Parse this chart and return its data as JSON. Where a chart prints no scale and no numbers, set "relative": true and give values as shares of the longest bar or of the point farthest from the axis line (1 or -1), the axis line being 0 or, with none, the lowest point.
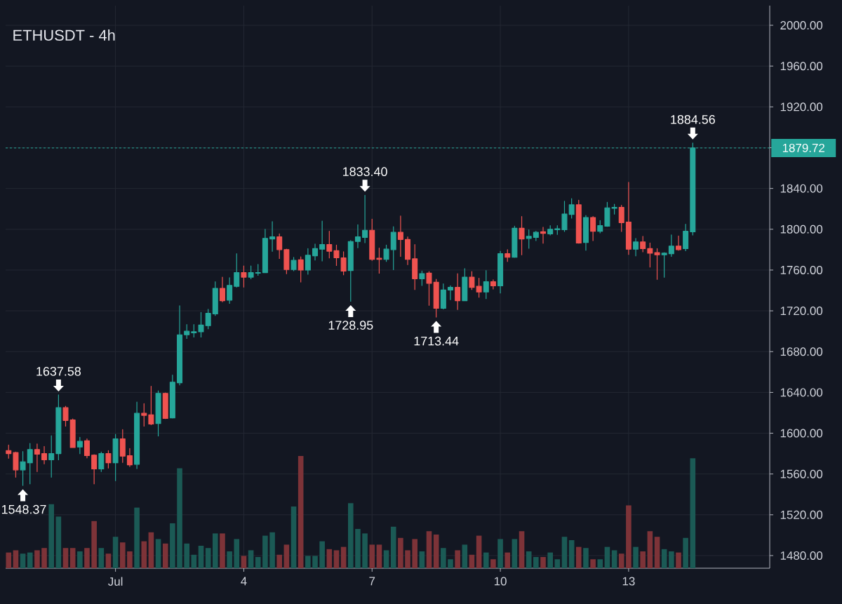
{
  "chart_data": [
    {
      "type": "candlestick",
      "title": "ETHUSDT - 4h",
      "x": [
        -1.5,
        -1.333,
        -1.167,
        -1,
        -0.833,
        -0.667,
        -0.5,
        -0.333,
        -0.167,
        0,
        0.167,
        0.333,
        0.5,
        0.667,
        0.833,
        1,
        1.167,
        1.333,
        1.5,
        1.667,
        1.833,
        2,
        2.167,
        2.333,
        2.5,
        2.667,
        2.833,
        3,
        3.167,
        3.333,
        3.5,
        3.667,
        3.833,
        4,
        4.167,
        4.333,
        4.5,
        4.667,
        4.833,
        5,
        5.167,
        5.333,
        5.5,
        5.667,
        5.833,
        6,
        6.167,
        6.333,
        6.5,
        6.667,
        6.833,
        7,
        7.167,
        7.333,
        7.5,
        7.667,
        7.833,
        8,
        8.167,
        8.333,
        8.5,
        8.667,
        8.833,
        9,
        9.167,
        9.333,
        9.5,
        9.667,
        9.833,
        10,
        10.167,
        10.333,
        10.5,
        10.667,
        10.833,
        11,
        11.167,
        11.333,
        11.5,
        11.667,
        11.833,
        12,
        12.167,
        12.333,
        12.5,
        12.667,
        12.833,
        13,
        13.167,
        13.333,
        13.5,
        13.667,
        13.833,
        14,
        14.167,
        14.333,
        14.5
      ],
      "ohlc": [
        [
          1583,
          1588.5,
          1575,
          1580
        ],
        [
          1581,
          1581.5,
          1556.5,
          1564
        ],
        [
          1564,
          1582,
          1548.37,
          1572
        ],
        [
          1571,
          1590,
          1550,
          1584
        ],
        [
          1584,
          1589.5,
          1562,
          1579.5
        ],
        [
          1580,
          1587,
          1569.5,
          1574
        ],
        [
          1574,
          1597.5,
          1556.5,
          1580
        ],
        [
          1580,
          1637.58,
          1573.5,
          1625
        ],
        [
          1625,
          1626.5,
          1606.5,
          1612.5
        ],
        [
          1613,
          1614,
          1585.5,
          1586
        ],
        [
          1586.5,
          1596,
          1579.5,
          1592
        ],
        [
          1592.5,
          1594.5,
          1575.5,
          1578
        ],
        [
          1578.5,
          1579,
          1550,
          1565
        ],
        [
          1565,
          1581.5,
          1562,
          1580
        ],
        [
          1580,
          1583,
          1565.5,
          1571
        ],
        [
          1571,
          1599,
          1553,
          1594.5
        ],
        [
          1594.5,
          1603.5,
          1571,
          1577.5
        ],
        [
          1578,
          1585,
          1567,
          1569
        ],
        [
          1569.5,
          1630.5,
          1565,
          1619.5
        ],
        [
          1619.5,
          1629,
          1606.5,
          1617.5
        ],
        [
          1618,
          1646,
          1608,
          1609
        ],
        [
          1609.5,
          1641.5,
          1597,
          1639
        ],
        [
          1639,
          1639.5,
          1614,
          1614.5
        ],
        [
          1615,
          1657,
          1614.5,
          1650
        ],
        [
          1649.5,
          1725,
          1647,
          1696.5
        ],
        [
          1696.5,
          1706.5,
          1692.5,
          1700
        ],
        [
          1698.5,
          1706.5,
          1694,
          1699.5
        ],
        [
          1699.5,
          1718.5,
          1694,
          1706
        ],
        [
          1705.5,
          1721.5,
          1702,
          1717.5
        ],
        [
          1717,
          1748.5,
          1715,
          1742
        ],
        [
          1742,
          1753,
          1728.5,
          1730
        ],
        [
          1730.5,
          1752.5,
          1727,
          1745
        ],
        [
          1744,
          1776,
          1743,
          1757.5
        ],
        [
          1757.5,
          1764,
          1743,
          1753
        ],
        [
          1753,
          1764,
          1751,
          1757.5
        ],
        [
          1757,
          1765.5,
          1754.5,
          1757.5
        ],
        [
          1757.5,
          1800,
          1757,
          1791
        ],
        [
          1790.5,
          1807.5,
          1778,
          1792.5
        ],
        [
          1792.5,
          1795.5,
          1771,
          1780
        ],
        [
          1780,
          1780.5,
          1756,
          1760.5
        ],
        [
          1760.5,
          1772.5,
          1759,
          1769.5
        ],
        [
          1770,
          1773,
          1748,
          1760
        ],
        [
          1760,
          1781,
          1755.5,
          1774.5
        ],
        [
          1774,
          1785.5,
          1769.5,
          1781
        ],
        [
          1780.5,
          1808,
          1768.5,
          1785
        ],
        [
          1785,
          1798,
          1771.5,
          1778.5
        ],
        [
          1779,
          1784.5,
          1764,
          1772
        ],
        [
          1772,
          1778,
          1755,
          1759
        ],
        [
          1759.5,
          1789,
          1728.95,
          1788
        ],
        [
          1788,
          1804.5,
          1781.5,
          1792.5
        ],
        [
          1792,
          1833.4,
          1786.5,
          1799
        ],
        [
          1799,
          1810,
          1769,
          1770.5
        ],
        [
          1771.5,
          1781.5,
          1756.5,
          1770.5
        ],
        [
          1770.5,
          1784.5,
          1768,
          1780.5
        ],
        [
          1780,
          1802.5,
          1760,
          1797
        ],
        [
          1797,
          1813,
          1773,
          1790
        ],
        [
          1790,
          1792.5,
          1765,
          1770.5
        ],
        [
          1771,
          1785,
          1740.5,
          1751.5
        ],
        [
          1751.5,
          1759,
          1744.5,
          1756.5
        ],
        [
          1757,
          1758.5,
          1725,
          1747
        ],
        [
          1748,
          1751,
          1713.44,
          1722.5
        ],
        [
          1722.5,
          1746.5,
          1721.5,
          1740.5
        ],
        [
          1740.5,
          1744.5,
          1730.5,
          1743
        ],
        [
          1743,
          1756.5,
          1721,
          1730
        ],
        [
          1730,
          1761.5,
          1729.5,
          1753
        ],
        [
          1753,
          1758.5,
          1740.5,
          1743
        ],
        [
          1744,
          1752,
          1733,
          1738.5
        ],
        [
          1738.5,
          1759.5,
          1731.5,
          1748.5
        ],
        [
          1748.5,
          1750.5,
          1741,
          1744.5
        ],
        [
          1744.5,
          1778.5,
          1737,
          1776
        ],
        [
          1776,
          1780,
          1768,
          1772.5
        ],
        [
          1772.5,
          1803,
          1772,
          1801
        ],
        [
          1801,
          1812.5,
          1774.5,
          1790.5
        ],
        [
          1791,
          1799.5,
          1781,
          1793
        ],
        [
          1792,
          1798,
          1788.5,
          1797
        ],
        [
          1797.5,
          1802,
          1786,
          1796
        ],
        [
          1795.5,
          1803.5,
          1794,
          1800
        ],
        [
          1799.5,
          1803.5,
          1794.5,
          1800.5
        ],
        [
          1799.5,
          1827.5,
          1797.5,
          1815
        ],
        [
          1814.5,
          1830,
          1810.5,
          1824
        ],
        [
          1824,
          1828.5,
          1786,
          1786.5
        ],
        [
          1787,
          1813.5,
          1779,
          1811.5
        ],
        [
          1811.5,
          1812.5,
          1788.5,
          1798
        ],
        [
          1798,
          1808.5,
          1796,
          1803.5
        ],
        [
          1803,
          1826.5,
          1802.5,
          1821
        ],
        [
          1820.5,
          1824.5,
          1814.5,
          1821.5
        ],
        [
          1821.5,
          1823.5,
          1797.5,
          1806.5
        ],
        [
          1807,
          1846,
          1775,
          1780.5
        ],
        [
          1780.5,
          1791,
          1773.5,
          1787.5
        ],
        [
          1787.5,
          1793,
          1777.5,
          1781
        ],
        [
          1781,
          1786.5,
          1762.5,
          1776.5
        ],
        [
          1777,
          1781,
          1750.5,
          1775
        ],
        [
          1775,
          1777,
          1752.5,
          1776.5
        ],
        [
          1776,
          1794.5,
          1773,
          1783.5
        ],
        [
          1783.5,
          1793.5,
          1779,
          1780
        ],
        [
          1781,
          1805,
          1778.5,
          1798
        ],
        [
          1797.5,
          1884.56,
          1794,
          1879.72
        ]
      ],
      "colors": [
        "#ef5350",
        "#ef5350",
        "#26a69a",
        "#26a69a",
        "#ef5350",
        "#ef5350",
        "#26a69a",
        "#26a69a",
        "#ef5350",
        "#ef5350",
        "#26a69a",
        "#ef5350",
        "#ef5350",
        "#26a69a",
        "#ef5350",
        "#26a69a",
        "#ef5350",
        "#ef5350",
        "#26a69a",
        "#ef5350",
        "#ef5350",
        "#26a69a",
        "#ef5350",
        "#26a69a",
        "#26a69a",
        "#26a69a",
        "#26a69a",
        "#26a69a",
        "#26a69a",
        "#26a69a",
        "#ef5350",
        "#26a69a",
        "#26a69a",
        "#ef5350",
        "#26a69a",
        "#26a69a",
        "#26a69a",
        "#26a69a",
        "#ef5350",
        "#ef5350",
        "#26a69a",
        "#ef5350",
        "#26a69a",
        "#26a69a",
        "#26a69a",
        "#ef5350",
        "#ef5350",
        "#ef5350",
        "#26a69a",
        "#26a69a",
        "#26a69a",
        "#ef5350",
        "#ef5350",
        "#26a69a",
        "#26a69a",
        "#ef5350",
        "#ef5350",
        "#ef5350",
        "#26a69a",
        "#ef5350",
        "#ef5350",
        "#26a69a",
        "#26a69a",
        "#ef5350",
        "#26a69a",
        "#ef5350",
        "#ef5350",
        "#26a69a",
        "#ef5350",
        "#26a69a",
        "#ef5350",
        "#26a69a",
        "#ef5350",
        "#26a69a",
        "#26a69a",
        "#ef5350",
        "#26a69a",
        "#26a69a",
        "#26a69a",
        "#26a69a",
        "#ef5350",
        "#26a69a",
        "#ef5350",
        "#26a69a",
        "#26a69a",
        "#26a69a",
        "#ef5350",
        "#ef5350",
        "#26a69a",
        "#ef5350",
        "#ef5350",
        "#ef5350",
        "#26a69a",
        "#26a69a",
        "#ef5350",
        "#26a69a",
        "#26a69a"
      ],
      "xlim": [
        -1.57,
        16.3
      ],
      "ylim": [
        1467.6,
        2019.3
      ],
      "xticks": [
        {
          "value": 1,
          "label": "Jul"
        },
        4,
        7,
        10,
        13
      ],
      "yticks": [
        {
          "value": 1480,
          "label": "1480.00"
        },
        {
          "value": 1520,
          "label": "1520.00"
        },
        {
          "value": 1560,
          "label": "1560.00"
        },
        {
          "value": 1600,
          "label": "1600.00"
        },
        {
          "value": 1640,
          "label": "1640.00"
        },
        {
          "value": 1680,
          "label": "1680.00"
        },
        {
          "value": 1720,
          "label": "1720.00"
        },
        {
          "value": 1760,
          "label": "1760.00"
        },
        {
          "value": 1800,
          "label": "1800.00"
        },
        {
          "value": 1840,
          "label": "1840.00"
        },
        {
          "value": 1880,
          "label": null
        },
        {
          "value": 1920,
          "label": "1920.00"
        },
        {
          "value": 1960,
          "label": "1960.00"
        },
        {
          "value": 2000,
          "label": "2000.00"
        }
      ],
      "grid": true,
      "ref_lines": [
        {
          "axis": "y",
          "value": 1879.72,
          "label": "1879.72",
          "color": "#26a69a",
          "line_style": "dashed"
        }
      ],
      "annotations": [
        {
          "text": "1548.37",
          "x": -1.167,
          "y": 1548.37
        },
        {
          "text": "1637.58",
          "x": -0.333,
          "y": 1637.58
        },
        {
          "text": "1728.95",
          "x": 6.5,
          "y": 1728.95
        },
        {
          "text": "1833.40",
          "x": 6.833,
          "y": 1833.4
        },
        {
          "text": "1713.44",
          "x": 8.5,
          "y": 1713.44
        },
        {
          "text": "1884.56",
          "x": 14.5,
          "y": 1884.56
        }
      ]
    },
    {
      "type": "bar",
      "relative": true,
      "xlim": [
        -1.57,
        16.3
      ],
      "x": [
        -1.5,
        -1.333,
        -1.167,
        -1,
        -0.833,
        -0.667,
        -0.5,
        -0.333,
        -0.167,
        0,
        0.167,
        0.333,
        0.5,
        0.667,
        0.833,
        1,
        1.167,
        1.333,
        1.5,
        1.667,
        1.833,
        2,
        2.167,
        2.333,
        2.5,
        2.667,
        2.833,
        3,
        3.167,
        3.333,
        3.5,
        3.667,
        3.833,
        4,
        4.167,
        4.333,
        4.5,
        4.667,
        4.833,
        5,
        5.167,
        5.333,
        5.5,
        5.667,
        5.833,
        6,
        6.167,
        6.333,
        6.5,
        6.667,
        6.833,
        7,
        7.167,
        7.333,
        7.5,
        7.667,
        7.833,
        8,
        8.167,
        8.333,
        8.5,
        8.667,
        8.833,
        9,
        9.167,
        9.333,
        9.5,
        9.667,
        9.833,
        10,
        10.167,
        10.333,
        10.5,
        10.667,
        10.833,
        11,
        11.167,
        11.333,
        11.5,
        11.667,
        11.833,
        12,
        12.167,
        12.333,
        12.5,
        12.667,
        12.833,
        13,
        13.167,
        13.333,
        13.5,
        13.667,
        13.833,
        14,
        14.167,
        14.333,
        14.5
      ],
      "values": [
        0.14,
        0.16,
        0.13,
        0.14,
        0.16,
        0.18,
        0.57,
        0.46,
        0.18,
        0.18,
        0.15,
        0.18,
        0.42,
        0.18,
        0.13,
        0.28,
        0.23,
        0.15,
        0.54,
        0.24,
        0.32,
        0.26,
        0.22,
        0.4,
        0.89,
        0.22,
        0.12,
        0.2,
        0.18,
        0.31,
        0.31,
        0.15,
        0.26,
        0.11,
        0.16,
        0.1,
        0.29,
        0.32,
        0.12,
        0.21,
        0.55,
        1,
        0.11,
        0.11,
        0.24,
        0.17,
        0.16,
        0.19,
        0.58,
        0.35,
        0.31,
        0.21,
        0.21,
        0.16,
        0.37,
        0.27,
        0.16,
        0.26,
        0.15,
        0.33,
        0.3,
        0.18,
        0.08,
        0.16,
        0.21,
        0.12,
        0.29,
        0.14,
        0.08,
        0.26,
        0.14,
        0.26,
        0.33,
        0.15,
        0.1,
        0.1,
        0.14,
        0.08,
        0.28,
        0.25,
        0.19,
        0.18,
        0.08,
        0.08,
        0.19,
        0.16,
        0.13,
        0.56,
        0.19,
        0.15,
        0.33,
        0.28,
        0.17,
        0.15,
        0.14,
        0.27,
        0.98
      ],
      "colors": [
        "#7d3338",
        "#7d3338",
        "#1b5a55",
        "#1b5a55",
        "#7d3338",
        "#7d3338",
        "#1b5a55",
        "#1b5a55",
        "#7d3338",
        "#7d3338",
        "#1b5a55",
        "#7d3338",
        "#7d3338",
        "#1b5a55",
        "#7d3338",
        "#1b5a55",
        "#7d3338",
        "#7d3338",
        "#1b5a55",
        "#7d3338",
        "#7d3338",
        "#1b5a55",
        "#7d3338",
        "#1b5a55",
        "#1b5a55",
        "#1b5a55",
        "#1b5a55",
        "#1b5a55",
        "#1b5a55",
        "#1b5a55",
        "#7d3338",
        "#1b5a55",
        "#1b5a55",
        "#7d3338",
        "#1b5a55",
        "#1b5a55",
        "#1b5a55",
        "#1b5a55",
        "#7d3338",
        "#7d3338",
        "#1b5a55",
        "#7d3338",
        "#1b5a55",
        "#1b5a55",
        "#1b5a55",
        "#7d3338",
        "#7d3338",
        "#7d3338",
        "#1b5a55",
        "#1b5a55",
        "#1b5a55",
        "#7d3338",
        "#7d3338",
        "#1b5a55",
        "#1b5a55",
        "#7d3338",
        "#7d3338",
        "#7d3338",
        "#1b5a55",
        "#7d3338",
        "#7d3338",
        "#1b5a55",
        "#1b5a55",
        "#7d3338",
        "#1b5a55",
        "#7d3338",
        "#7d3338",
        "#1b5a55",
        "#7d3338",
        "#1b5a55",
        "#7d3338",
        "#1b5a55",
        "#7d3338",
        "#1b5a55",
        "#1b5a55",
        "#7d3338",
        "#1b5a55",
        "#1b5a55",
        "#1b5a55",
        "#1b5a55",
        "#7d3338",
        "#1b5a55",
        "#7d3338",
        "#1b5a55",
        "#1b5a55",
        "#1b5a55",
        "#7d3338",
        "#7d3338",
        "#1b5a55",
        "#7d3338",
        "#7d3338",
        "#7d3338",
        "#1b5a55",
        "#1b5a55",
        "#7d3338",
        "#1b5a55",
        "#1b5a55"
      ]
    }
  ]
}
